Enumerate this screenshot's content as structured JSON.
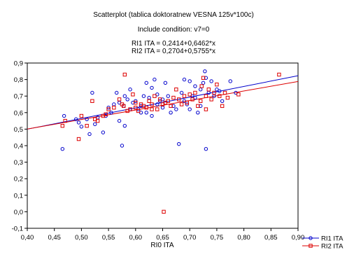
{
  "chart_data": {
    "type": "scatter",
    "title": "Scatterplot (tablica doktoratnew VESNA 125v*100c)",
    "condition": "Include condition: v7=0",
    "equations": [
      "RI1 ITA = 0,2414+0,6462*x",
      "RI2 ITA = 0,2704+0,5755*x"
    ],
    "xlabel": "RI0 ITA",
    "ylabel": "",
    "xlim": [
      0.4,
      0.9
    ],
    "ylim": [
      -0.1,
      0.9
    ],
    "x_ticks": [
      "0,40",
      "0,45",
      "0,50",
      "0,55",
      "0,60",
      "0,65",
      "0,70",
      "0,75",
      "0,80",
      "0,85",
      "0,90"
    ],
    "y_ticks": [
      "-0,1",
      "0,0",
      "0,1",
      "0,2",
      "0,3",
      "0,4",
      "0,5",
      "0,6",
      "0,7",
      "0,8",
      "0,9"
    ],
    "grid": false,
    "legend_position": "bottom-right",
    "series": [
      {
        "name": "RI1 ITA",
        "color": "#0000cc",
        "marker": "circle",
        "fit": {
          "intercept": 0.2414,
          "slope": 0.6462
        },
        "points": [
          [
            0.465,
            0.38
          ],
          [
            0.468,
            0.58
          ],
          [
            0.49,
            0.56
          ],
          [
            0.495,
            0.54
          ],
          [
            0.5,
            0.515
          ],
          [
            0.51,
            0.56
          ],
          [
            0.515,
            0.47
          ],
          [
            0.52,
            0.72
          ],
          [
            0.525,
            0.53
          ],
          [
            0.53,
            0.57
          ],
          [
            0.54,
            0.48
          ],
          [
            0.545,
            0.58
          ],
          [
            0.55,
            0.63
          ],
          [
            0.555,
            0.6
          ],
          [
            0.56,
            0.65
          ],
          [
            0.565,
            0.72
          ],
          [
            0.57,
            0.55
          ],
          [
            0.57,
            0.66
          ],
          [
            0.575,
            0.4
          ],
          [
            0.578,
            0.64
          ],
          [
            0.58,
            0.52
          ],
          [
            0.58,
            0.7
          ],
          [
            0.585,
            0.68
          ],
          [
            0.59,
            0.74
          ],
          [
            0.59,
            0.62
          ],
          [
            0.595,
            0.66
          ],
          [
            0.6,
            0.67
          ],
          [
            0.605,
            0.62
          ],
          [
            0.61,
            0.6
          ],
          [
            0.61,
            0.64
          ],
          [
            0.615,
            0.7
          ],
          [
            0.62,
            0.6
          ],
          [
            0.62,
            0.78
          ],
          [
            0.625,
            0.69
          ],
          [
            0.63,
            0.75
          ],
          [
            0.63,
            0.58
          ],
          [
            0.635,
            0.8
          ],
          [
            0.64,
            0.65
          ],
          [
            0.64,
            0.71
          ],
          [
            0.645,
            0.67
          ],
          [
            0.65,
            0.68
          ],
          [
            0.65,
            0.63
          ],
          [
            0.655,
            0.78
          ],
          [
            0.66,
            0.7
          ],
          [
            0.665,
            0.6
          ],
          [
            0.67,
            0.64
          ],
          [
            0.675,
            0.62
          ],
          [
            0.68,
            0.41
          ],
          [
            0.685,
            0.72
          ],
          [
            0.69,
            0.67
          ],
          [
            0.69,
            0.8
          ],
          [
            0.695,
            0.65
          ],
          [
            0.7,
            0.62
          ],
          [
            0.7,
            0.79
          ],
          [
            0.705,
            0.7
          ],
          [
            0.71,
            0.69
          ],
          [
            0.71,
            0.76
          ],
          [
            0.715,
            0.6
          ],
          [
            0.72,
            0.74
          ],
          [
            0.72,
            0.64
          ],
          [
            0.725,
            0.78
          ],
          [
            0.728,
            0.85
          ],
          [
            0.73,
            0.81
          ],
          [
            0.73,
            0.38
          ],
          [
            0.735,
            0.72
          ],
          [
            0.74,
            0.79
          ],
          [
            0.745,
            0.7
          ],
          [
            0.75,
            0.74
          ],
          [
            0.755,
            0.73
          ],
          [
            0.76,
            0.67
          ],
          [
            0.775,
            0.79
          ],
          [
            0.785,
            0.72
          ]
        ]
      },
      {
        "name": "RI2 ITA",
        "color": "#dd0000",
        "marker": "square",
        "fit": {
          "intercept": 0.2704,
          "slope": 0.5755
        },
        "points": [
          [
            0.465,
            0.52
          ],
          [
            0.47,
            0.55
          ],
          [
            0.495,
            0.44
          ],
          [
            0.5,
            0.58
          ],
          [
            0.51,
            0.52
          ],
          [
            0.52,
            0.67
          ],
          [
            0.525,
            0.56
          ],
          [
            0.53,
            0.55
          ],
          [
            0.54,
            0.58
          ],
          [
            0.545,
            0.59
          ],
          [
            0.55,
            0.62
          ],
          [
            0.56,
            0.63
          ],
          [
            0.57,
            0.68
          ],
          [
            0.575,
            0.65
          ],
          [
            0.578,
            0.64
          ],
          [
            0.58,
            0.83
          ],
          [
            0.585,
            0.61
          ],
          [
            0.59,
            0.62
          ],
          [
            0.595,
            0.71
          ],
          [
            0.6,
            0.63
          ],
          [
            0.6,
            0.66
          ],
          [
            0.605,
            0.61
          ],
          [
            0.61,
            0.65
          ],
          [
            0.615,
            0.64
          ],
          [
            0.62,
            0.63
          ],
          [
            0.625,
            0.67
          ],
          [
            0.63,
            0.65
          ],
          [
            0.63,
            0.62
          ],
          [
            0.635,
            0.7
          ],
          [
            0.64,
            0.62
          ],
          [
            0.645,
            0.68
          ],
          [
            0.65,
            0.65
          ],
          [
            0.652,
            0.0
          ],
          [
            0.655,
            0.66
          ],
          [
            0.66,
            0.67
          ],
          [
            0.665,
            0.64
          ],
          [
            0.67,
            0.69
          ],
          [
            0.675,
            0.74
          ],
          [
            0.68,
            0.68
          ],
          [
            0.685,
            0.65
          ],
          [
            0.69,
            0.7
          ],
          [
            0.695,
            0.66
          ],
          [
            0.7,
            0.71
          ],
          [
            0.705,
            0.68
          ],
          [
            0.71,
            0.72
          ],
          [
            0.715,
            0.64
          ],
          [
            0.72,
            0.67
          ],
          [
            0.722,
            0.76
          ],
          [
            0.725,
            0.81
          ],
          [
            0.73,
            0.7
          ],
          [
            0.73,
            0.62
          ],
          [
            0.735,
            0.74
          ],
          [
            0.74,
            0.68
          ],
          [
            0.745,
            0.72
          ],
          [
            0.75,
            0.77
          ],
          [
            0.755,
            0.7
          ],
          [
            0.76,
            0.64
          ],
          [
            0.765,
            0.72
          ],
          [
            0.77,
            0.69
          ],
          [
            0.79,
            0.71
          ],
          [
            0.865,
            0.83
          ]
        ]
      }
    ]
  }
}
